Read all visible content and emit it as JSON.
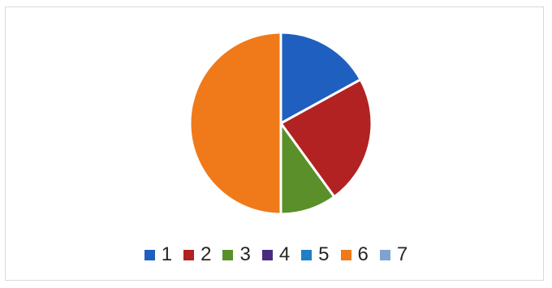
{
  "chart_data": {
    "type": "pie",
    "title": "",
    "categories": [
      "1",
      "2",
      "3",
      "4",
      "5",
      "6",
      "7"
    ],
    "values": [
      17,
      23,
      10,
      0,
      0,
      50,
      0
    ],
    "colors": [
      "#1f5fbf",
      "#b22222",
      "#5a8f29",
      "#4b2a82",
      "#1f7fc4",
      "#f07a1a",
      "#7fa3cf"
    ],
    "legend": {
      "position": "bottom",
      "entries": [
        "1",
        "2",
        "3",
        "4",
        "5",
        "6",
        "7"
      ]
    },
    "start_angle_deg": 0,
    "direction": "clockwise"
  }
}
